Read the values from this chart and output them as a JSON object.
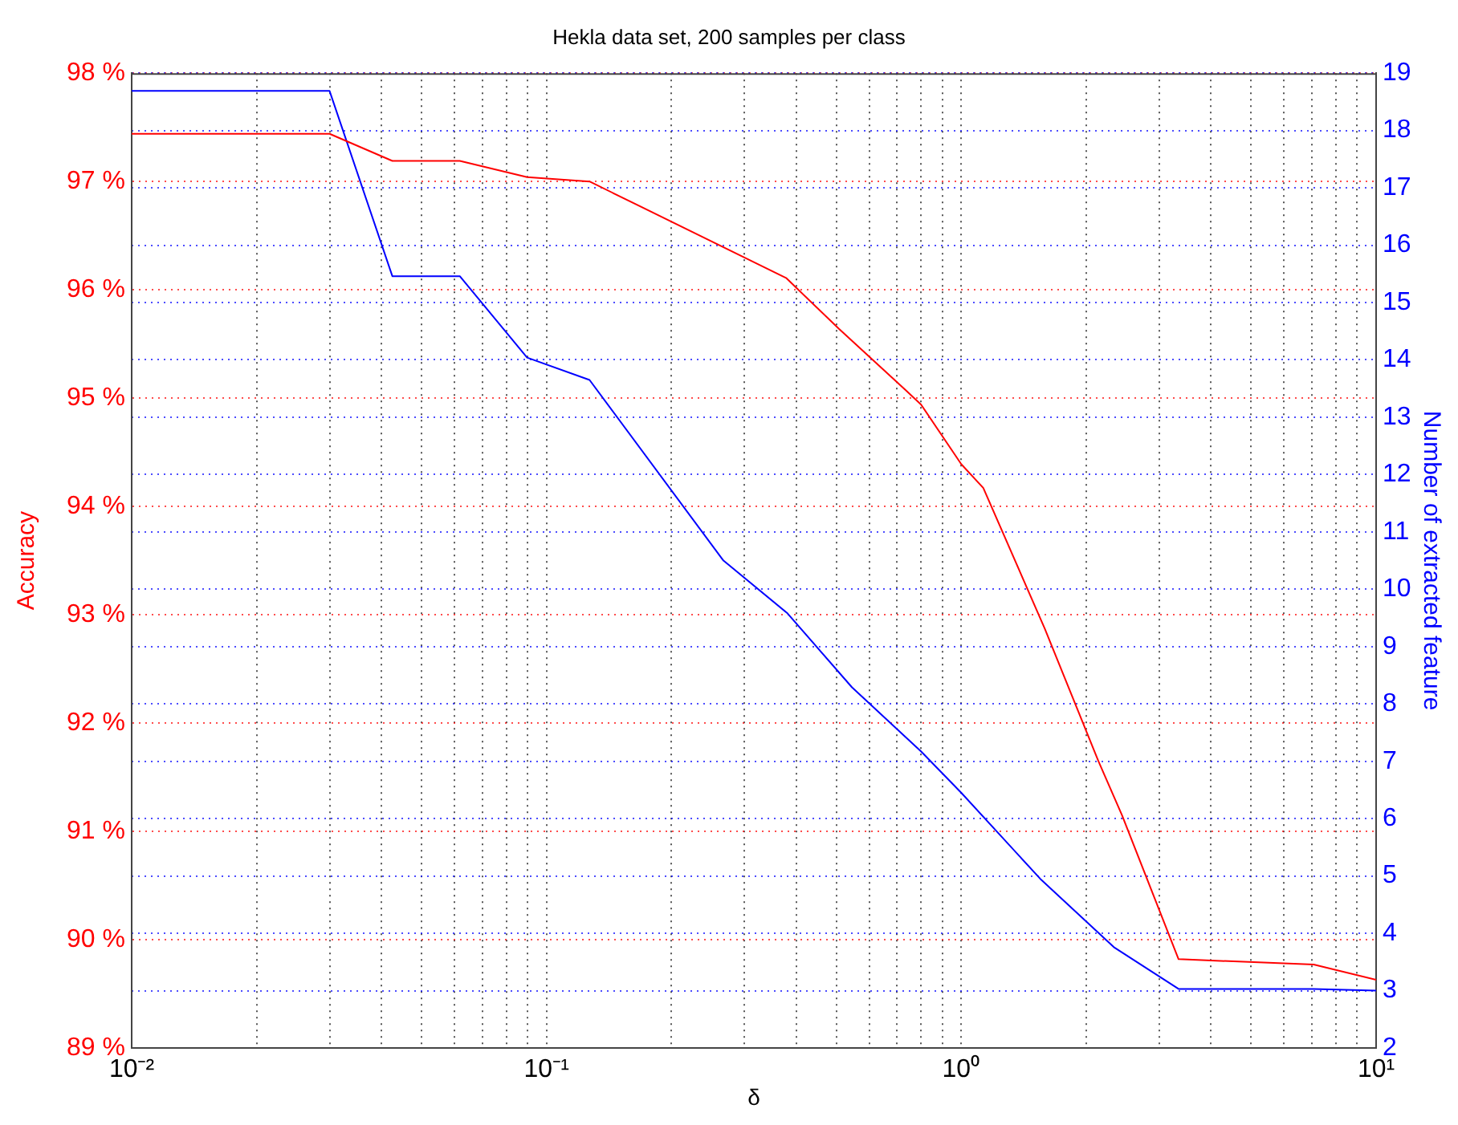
{
  "chart_data": {
    "type": "line",
    "title": "Hekla data set, 200 samples per class",
    "xlabel": "δ",
    "ylabel": "Accuracy",
    "y2label": "Number of extracted feature",
    "log": "x",
    "grid": true,
    "marker": "none",
    "xlim": [
      0.01,
      10
    ],
    "xticks": [
      {
        "value": 0.01,
        "label": "10⁻²"
      },
      {
        "value": 0.02,
        "label": null
      },
      {
        "value": 0.03,
        "label": null
      },
      {
        "value": 0.04,
        "label": null
      },
      {
        "value": 0.05,
        "label": null
      },
      {
        "value": 0.06,
        "label": null
      },
      {
        "value": 0.07,
        "label": null
      },
      {
        "value": 0.08,
        "label": null
      },
      {
        "value": 0.09,
        "label": null
      },
      {
        "value": 0.1,
        "label": "10⁻¹"
      },
      {
        "value": 0.2,
        "label": null
      },
      {
        "value": 0.3,
        "label": null
      },
      {
        "value": 0.4,
        "label": null
      },
      {
        "value": 0.5,
        "label": null
      },
      {
        "value": 0.6,
        "label": null
      },
      {
        "value": 0.7,
        "label": null
      },
      {
        "value": 0.8,
        "label": null
      },
      {
        "value": 0.9,
        "label": null
      },
      {
        "value": 1,
        "label": "10⁰"
      },
      {
        "value": 2,
        "label": null
      },
      {
        "value": 3,
        "label": null
      },
      {
        "value": 4,
        "label": null
      },
      {
        "value": 5,
        "label": null
      },
      {
        "value": 6,
        "label": null
      },
      {
        "value": 7,
        "label": null
      },
      {
        "value": 8,
        "label": null
      },
      {
        "value": 9,
        "label": null
      },
      {
        "value": 10,
        "label": "10¹"
      }
    ],
    "ylim": [
      89,
      98
    ],
    "yticks": [
      {
        "value": 89,
        "label": "89 %"
      },
      {
        "value": 90,
        "label": "90 %"
      },
      {
        "value": 91,
        "label": "91 %"
      },
      {
        "value": 92,
        "label": "92 %"
      },
      {
        "value": 93,
        "label": "93 %"
      },
      {
        "value": 94,
        "label": "94 %"
      },
      {
        "value": 95,
        "label": "95 %"
      },
      {
        "value": 96,
        "label": "96 %"
      },
      {
        "value": 97,
        "label": "97 %"
      },
      {
        "value": 98,
        "label": "98 %"
      }
    ],
    "y2lim": [
      2,
      19
    ],
    "y2ticks": [
      2,
      3,
      4,
      5,
      6,
      7,
      8,
      9,
      10,
      11,
      12,
      13,
      14,
      15,
      16,
      17,
      18,
      19
    ],
    "series": [
      {
        "color": "#ff0000",
        "x": [
          0.01,
          0.03,
          0.0425,
          0.0618,
          0.0898,
          0.127,
          0.378,
          0.507,
          0.731,
          0.8,
          1,
          1.13,
          1.59,
          2.14,
          2.44,
          3.34,
          7.07,
          10
        ],
        "values": [
          97.44,
          97.44,
          97.19,
          97.19,
          97.04,
          97.0,
          96.11,
          95.64,
          95.08,
          94.94,
          94.39,
          94.17,
          92.87,
          91.65,
          91.15,
          89.82,
          89.77,
          89.63
        ]
      },
      {
        "color": "#0000ff",
        "axis": "y2",
        "x": [
          0.01,
          0.03,
          0.0425,
          0.0618,
          0.0898,
          0.127,
          0.267,
          0.381,
          0.545,
          0.8,
          1,
          1.55,
          2.34,
          3.34,
          7.07,
          10
        ],
        "values": [
          18.69,
          18.69,
          15.46,
          15.46,
          14.04,
          13.65,
          10.5,
          9.58,
          8.29,
          7.17,
          6.45,
          4.95,
          3.75,
          3.03,
          3.03,
          3.0
        ]
      }
    ]
  }
}
